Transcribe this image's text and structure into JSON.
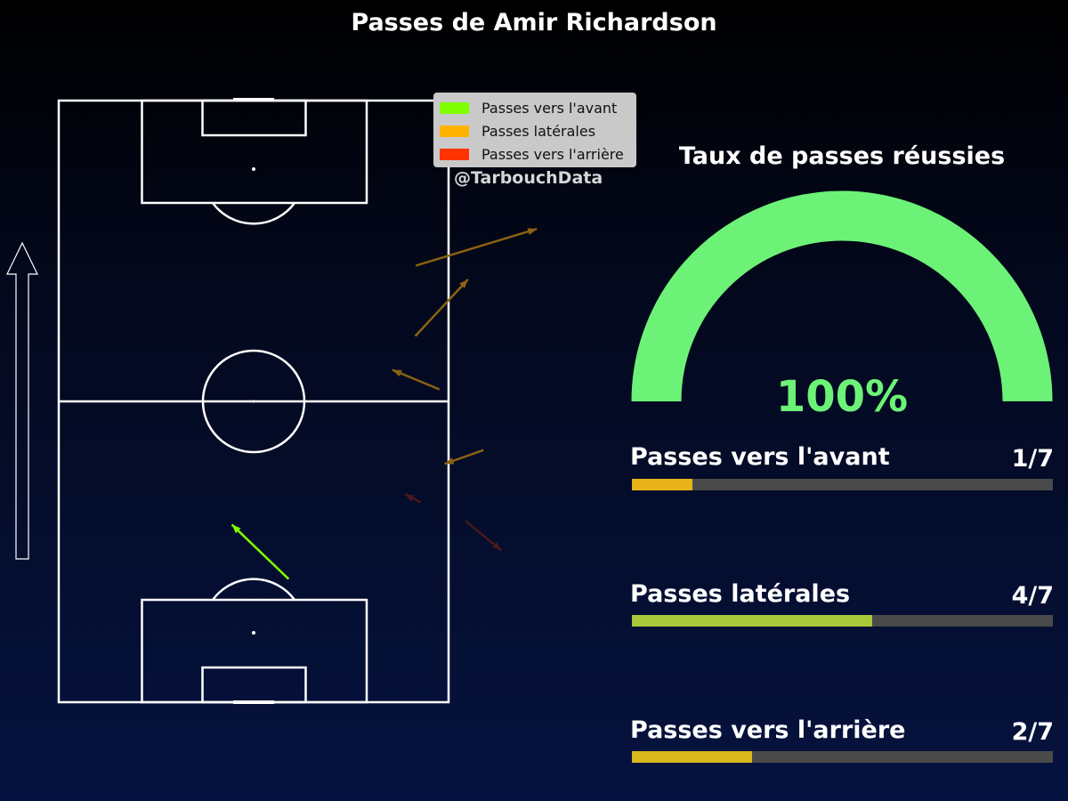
{
  "title": "Passes de Amir Richardson",
  "legend": {
    "items": [
      {
        "label": "Passes vers l'avant",
        "color": "#7fff00"
      },
      {
        "label": "Passes latérales",
        "color": "#ffb300"
      },
      {
        "label": "Passes vers l'arrière",
        "color": "#ff3300"
      }
    ]
  },
  "credit": "@TarbouchData",
  "success_rate": {
    "title": "Taux de passes réussies",
    "value_text": "100%",
    "value": 1.0,
    "color": "#6cf277"
  },
  "stats": [
    {
      "label": "Passes vers l'avant",
      "fraction_text": "1/7",
      "value": 0.1429,
      "color": "#e8b21a"
    },
    {
      "label": "Passes latérales",
      "fraction_text": "4/7",
      "value": 0.5714,
      "color": "#a8c83a"
    },
    {
      "label": "Passes vers l'arrière",
      "fraction_text": "2/7",
      "value": 0.2857,
      "color": "#d9b81c"
    }
  ],
  "chart_data": {
    "type": "scatter",
    "title": "Passes de Amir Richardson",
    "pitch": {
      "width": 68,
      "length": 105,
      "direction": "up"
    },
    "passes": [
      {
        "start": [
          40.1,
          21.5
        ],
        "end": [
          30.2,
          31.0
        ],
        "kind": "forward",
        "color": "#7fff00"
      },
      {
        "start": [
          62.2,
          63.9
        ],
        "end": [
          71.4,
          73.8
        ],
        "kind": "lateral",
        "color": "#8a6212"
      },
      {
        "start": [
          62.3,
          76.2
        ],
        "end": [
          83.4,
          82.6
        ],
        "kind": "lateral",
        "color": "#8a6212"
      },
      {
        "start": [
          66.4,
          54.6
        ],
        "end": [
          58.2,
          58.0
        ],
        "kind": "lateral",
        "color": "#8a6212"
      },
      {
        "start": [
          74.1,
          44.0
        ],
        "end": [
          67.3,
          41.6
        ],
        "kind": "lateral",
        "color": "#8a6212"
      },
      {
        "start": [
          63.1,
          34.9
        ],
        "end": [
          60.4,
          36.3
        ],
        "kind": "backward",
        "color": "#4a1a1a"
      },
      {
        "start": [
          71.0,
          31.6
        ],
        "end": [
          77.2,
          26.5
        ],
        "kind": "backward",
        "color": "#4a1a1a"
      }
    ]
  }
}
